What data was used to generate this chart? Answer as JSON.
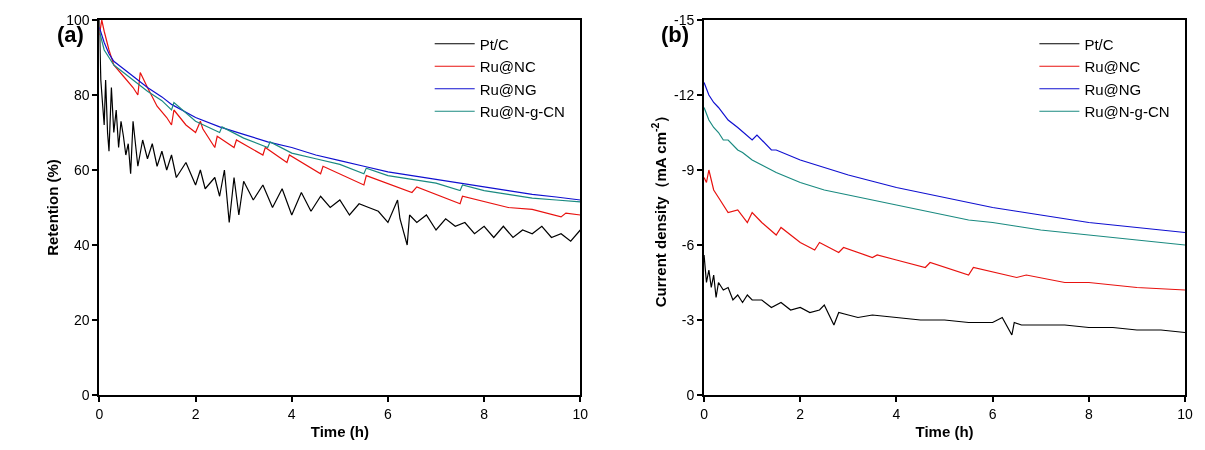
{
  "chart_data": [
    {
      "type": "line",
      "xlabel": "Time (h)",
      "ylabel": "Retention (%)",
      "annotations": [
        "(a)"
      ],
      "xlim": [
        0,
        10
      ],
      "ylim": [
        0,
        100
      ],
      "xticks": [
        0,
        2,
        4,
        6,
        8,
        10
      ],
      "yticks": [
        0,
        20,
        40,
        60,
        80,
        100
      ],
      "legend": "top right",
      "series": [
        {
          "name": "Pt/C",
          "color": "#000000",
          "x": [
            0,
            0.03,
            0.07,
            0.1,
            0.13,
            0.17,
            0.2,
            0.25,
            0.3,
            0.35,
            0.4,
            0.45,
            0.5,
            0.55,
            0.6,
            0.65,
            0.7,
            0.8,
            0.9,
            1.0,
            1.1,
            1.2,
            1.3,
            1.4,
            1.5,
            1.6,
            1.8,
            2.0,
            2.1,
            2.2,
            2.4,
            2.5,
            2.6,
            2.7,
            2.8,
            2.9,
            3.0,
            3.2,
            3.4,
            3.6,
            3.8,
            4.0,
            4.2,
            4.4,
            4.6,
            4.8,
            5.0,
            5.2,
            5.4,
            5.6,
            5.8,
            6.0,
            6.2,
            6.25,
            6.4,
            6.45,
            6.6,
            6.8,
            7.0,
            7.2,
            7.4,
            7.6,
            7.8,
            8.0,
            8.2,
            8.4,
            8.6,
            8.8,
            9.0,
            9.2,
            9.4,
            9.6,
            9.8,
            10
          ],
          "values": [
            100,
            84,
            77,
            72,
            84,
            70,
            65,
            82,
            70,
            76,
            66,
            73,
            69,
            64,
            67,
            59,
            73,
            61,
            68,
            63,
            67,
            61,
            65,
            60,
            64,
            58,
            62,
            56,
            60,
            55,
            58,
            53,
            60,
            46,
            58,
            48,
            57,
            52,
            56,
            50,
            55,
            48,
            54,
            49,
            53,
            50,
            52,
            48,
            51,
            50,
            49,
            46,
            52,
            47,
            40,
            48,
            46,
            48,
            44,
            47,
            45,
            46,
            43,
            45,
            42,
            45,
            42,
            44,
            43,
            45,
            42,
            43,
            41,
            44
          ]
        },
        {
          "name": "Ru@NC",
          "color": "#e8120f",
          "x": [
            0,
            0.05,
            0.1,
            0.2,
            0.3,
            0.5,
            0.7,
            0.8,
            0.85,
            1.0,
            1.2,
            1.4,
            1.5,
            1.55,
            1.8,
            2.0,
            2.1,
            2.15,
            2.4,
            2.45,
            2.8,
            2.85,
            3.4,
            3.45,
            3.9,
            3.95,
            4.6,
            4.65,
            5.5,
            5.55,
            6.5,
            6.6,
            7.5,
            7.55,
            8.5,
            9.0,
            9.6,
            9.7,
            10
          ],
          "values": [
            96,
            100,
            97,
            92,
            88,
            85,
            82,
            80,
            86,
            82,
            77,
            74,
            72,
            76,
            72,
            70,
            73,
            71,
            66,
            69,
            66,
            68,
            64,
            66,
            62,
            64,
            59,
            61,
            56,
            58.5,
            54,
            55.5,
            51,
            53,
            50,
            49.5,
            47.5,
            48.5,
            48
          ]
        },
        {
          "name": "Ru@NG",
          "color": "#1010d0",
          "x": [
            0,
            0.1,
            0.2,
            0.3,
            0.5,
            0.7,
            1.0,
            1.3,
            1.5,
            2.0,
            2.5,
            3.0,
            3.5,
            4.0,
            4.5,
            5.0,
            5.5,
            6.0,
            6.5,
            7.0,
            7.5,
            8.0,
            8.5,
            9.0,
            9.5,
            10
          ],
          "values": [
            98,
            94,
            91,
            89,
            87,
            85,
            82,
            79.5,
            77.5,
            74,
            71.5,
            69.5,
            67.5,
            66,
            64,
            62.5,
            61,
            59.5,
            58.5,
            57.5,
            56.5,
            55.5,
            54.5,
            53.5,
            52.8,
            52
          ]
        },
        {
          "name": "Ru@N-g-CN",
          "color": "#1a8a80",
          "x": [
            0,
            0.1,
            0.2,
            0.3,
            0.5,
            0.7,
            1.0,
            1.3,
            1.5,
            1.55,
            2.0,
            2.5,
            2.55,
            3.0,
            3.5,
            3.55,
            4.0,
            4.5,
            5.0,
            5.5,
            5.55,
            6.0,
            6.5,
            7.0,
            7.5,
            7.55,
            8.0,
            8.5,
            9.0,
            9.5,
            10
          ],
          "values": [
            97,
            92,
            90,
            88,
            86,
            84,
            81,
            78.5,
            76,
            78,
            73,
            70,
            71.5,
            68.5,
            66,
            67.5,
            64.5,
            63,
            61.5,
            59,
            60.5,
            58.5,
            57.5,
            56.5,
            54.5,
            56,
            54.5,
            53.5,
            52.5,
            52,
            51.5
          ]
        }
      ]
    },
    {
      "type": "line",
      "xlabel": "Time (h)",
      "ylabel": "Current density（mA cm$^{-2}$）",
      "annotations": [
        "(b)"
      ],
      "xlim": [
        0,
        10
      ],
      "ylim": [
        0,
        -15
      ],
      "xticks": [
        0,
        2,
        4,
        6,
        8,
        10
      ],
      "yticks": [
        0,
        -3,
        -6,
        -9,
        -12,
        -15
      ],
      "legend": "top right",
      "series": [
        {
          "name": "Pt/C",
          "color": "#000000",
          "x": [
            0,
            0.05,
            0.1,
            0.15,
            0.2,
            0.25,
            0.3,
            0.4,
            0.5,
            0.6,
            0.7,
            0.8,
            0.9,
            1.0,
            1.2,
            1.4,
            1.6,
            1.8,
            2.0,
            2.2,
            2.4,
            2.5,
            2.6,
            2.7,
            2.8,
            3.0,
            3.2,
            3.5,
            4.0,
            4.5,
            5.0,
            5.5,
            6.0,
            6.2,
            6.4,
            6.45,
            6.6,
            7.0,
            7.5,
            8.0,
            8.5,
            9.0,
            9.5,
            10
          ],
          "values": [
            -5.6,
            -4.5,
            -5,
            -4.3,
            -4.8,
            -3.9,
            -4.5,
            -4.2,
            -4.3,
            -3.8,
            -4,
            -3.7,
            -4,
            -3.8,
            -3.8,
            -3.5,
            -3.7,
            -3.4,
            -3.5,
            -3.3,
            -3.4,
            -3.6,
            -3.2,
            -2.8,
            -3.3,
            -3.2,
            -3.1,
            -3.2,
            -3.1,
            -3,
            -3,
            -2.9,
            -2.9,
            -3.1,
            -2.4,
            -2.9,
            -2.8,
            -2.8,
            -2.8,
            -2.7,
            -2.7,
            -2.6,
            -2.6,
            -2.5
          ]
        },
        {
          "name": "Ru@NC",
          "color": "#e8120f",
          "x": [
            0,
            0.05,
            0.1,
            0.2,
            0.3,
            0.5,
            0.7,
            0.9,
            1.0,
            1.2,
            1.5,
            1.6,
            2.0,
            2.3,
            2.4,
            2.8,
            2.9,
            3.5,
            3.6,
            4.0,
            4.6,
            4.7,
            5.5,
            5.6,
            6.5,
            6.7,
            7.5,
            8.0,
            9.0,
            10
          ],
          "values": [
            -8.7,
            -8.5,
            -9,
            -8.2,
            -7.9,
            -7.3,
            -7.4,
            -6.9,
            -7.3,
            -6.9,
            -6.4,
            -6.7,
            -6.1,
            -5.8,
            -6.1,
            -5.7,
            -5.9,
            -5.5,
            -5.6,
            -5.4,
            -5.1,
            -5.3,
            -4.8,
            -5.1,
            -4.7,
            -4.8,
            -4.5,
            -4.5,
            -4.3,
            -4.2
          ]
        },
        {
          "name": "Ru@NG",
          "color": "#1010d0",
          "x": [
            0,
            0.1,
            0.2,
            0.3,
            0.5,
            0.7,
            1.0,
            1.1,
            1.4,
            1.5,
            2.0,
            2.5,
            3.0,
            3.5,
            4.0,
            4.5,
            5.0,
            5.5,
            6.0,
            6.5,
            7.0,
            7.5,
            8.0,
            8.5,
            9.0,
            9.5,
            10
          ],
          "values": [
            -12.5,
            -12,
            -11.7,
            -11.5,
            -11,
            -10.7,
            -10.2,
            -10.4,
            -9.8,
            -9.8,
            -9.4,
            -9.1,
            -8.8,
            -8.55,
            -8.3,
            -8.1,
            -7.9,
            -7.7,
            -7.5,
            -7.35,
            -7.2,
            -7.05,
            -6.9,
            -6.8,
            -6.7,
            -6.6,
            -6.5
          ]
        },
        {
          "name": "Ru@N-g-CN",
          "color": "#1a8a80",
          "x": [
            0,
            0.1,
            0.2,
            0.3,
            0.4,
            0.5,
            0.7,
            0.8,
            1.0,
            1.2,
            1.5,
            2.0,
            2.5,
            3.0,
            3.5,
            4.0,
            4.5,
            5.0,
            5.5,
            6.0,
            6.5,
            7.0,
            7.5,
            8.0,
            8.5,
            9.0,
            9.5,
            10
          ],
          "values": [
            -11.5,
            -11,
            -10.7,
            -10.5,
            -10.2,
            -10.2,
            -9.8,
            -9.7,
            -9.4,
            -9.2,
            -8.9,
            -8.5,
            -8.2,
            -8,
            -7.8,
            -7.6,
            -7.4,
            -7.2,
            -7,
            -6.9,
            -6.75,
            -6.6,
            -6.5,
            -6.4,
            -6.3,
            -6.2,
            -6.1,
            -6.0
          ]
        }
      ]
    }
  ]
}
